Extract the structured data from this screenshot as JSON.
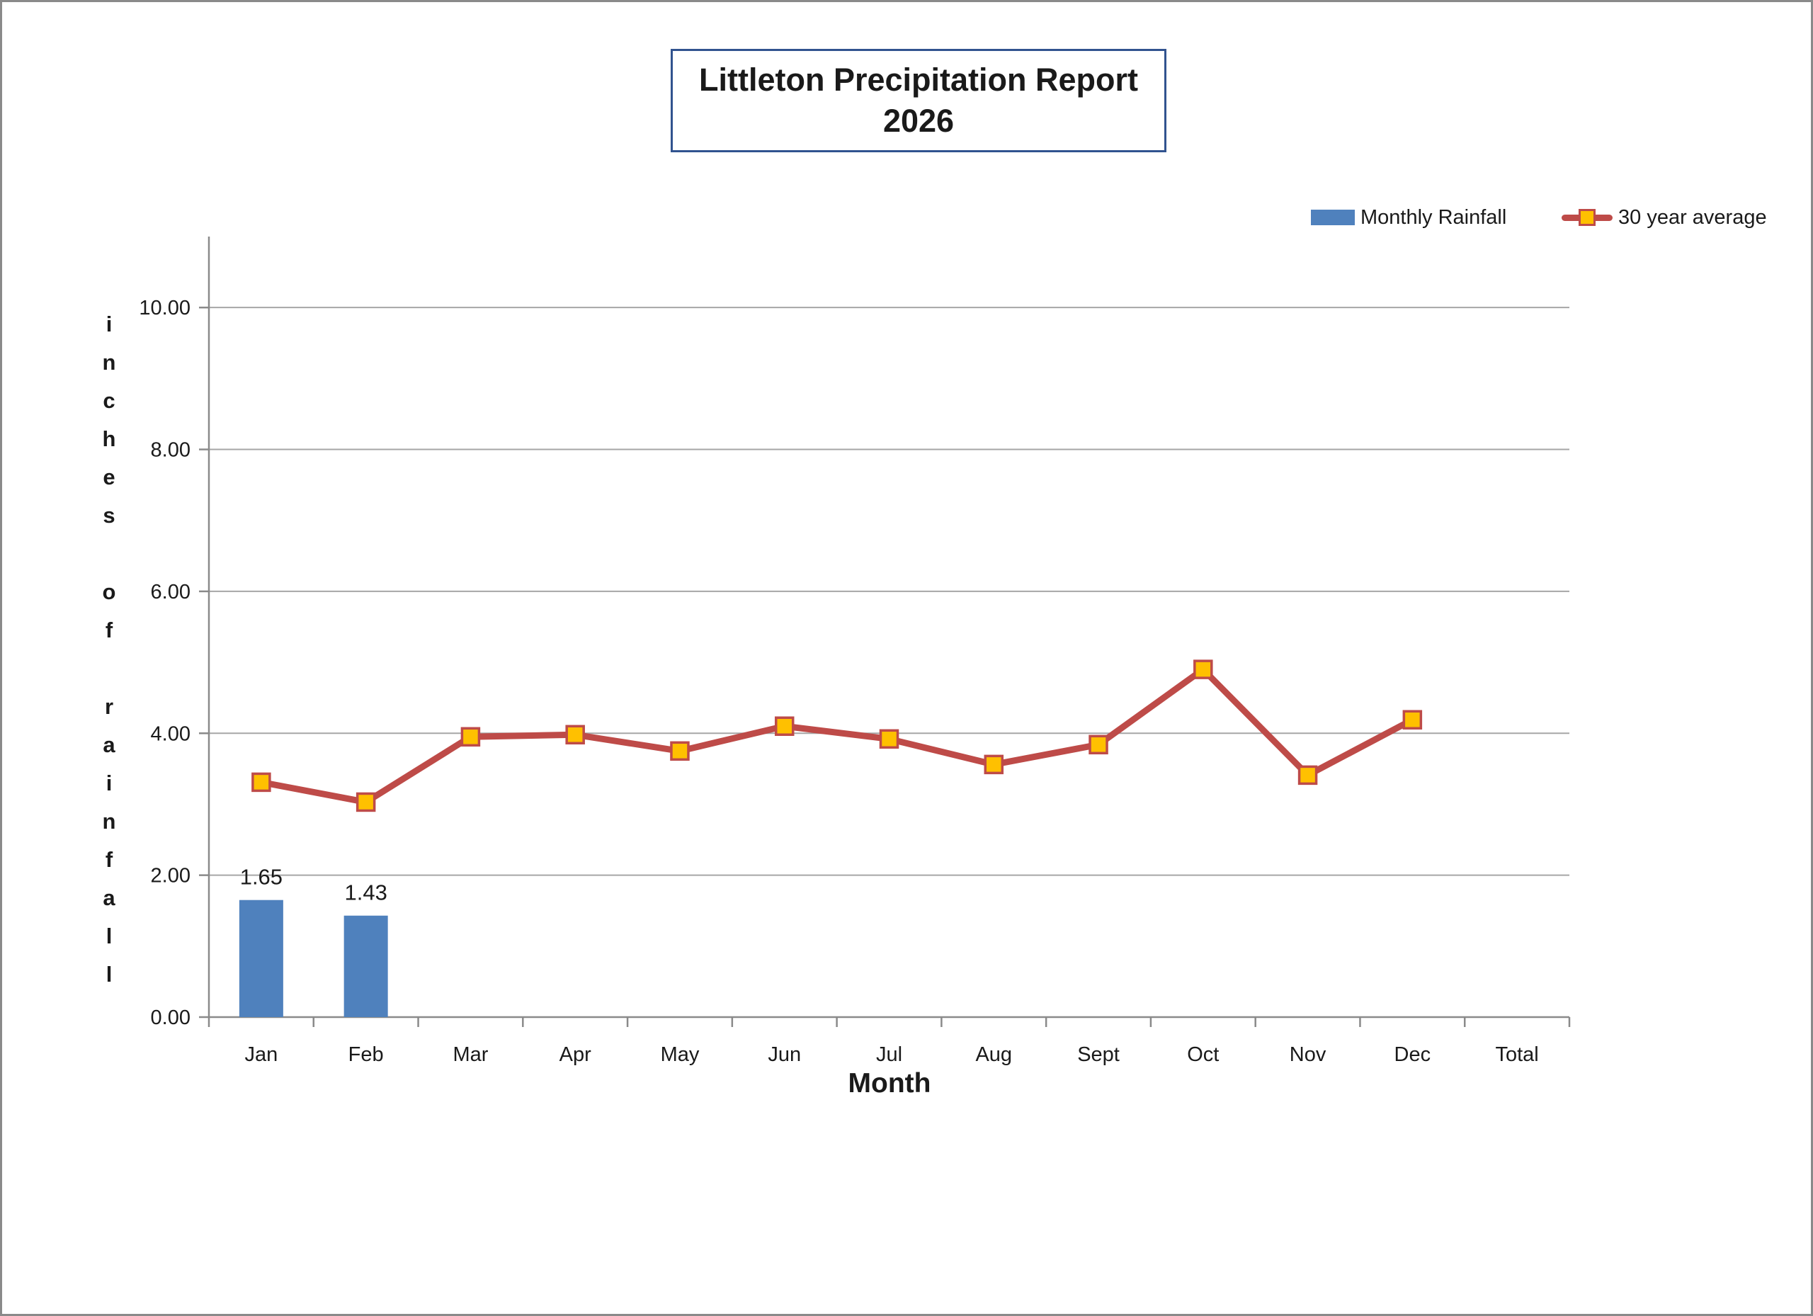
{
  "window": {
    "background": "#ffffff",
    "outer_border_color": "#8a8a8a"
  },
  "title": {
    "line1": "Littleton Precipitation Report",
    "line2": "2026",
    "box_border_color": "#31538f"
  },
  "legend": {
    "position": "top-right",
    "items": [
      {
        "label": "Monthly Rainfall",
        "swatch": "bar-swatch",
        "color": "#4f81bd"
      },
      {
        "label": "30 year average",
        "swatch": "line-marker-swatch",
        "line_color": "#be4b48",
        "marker_fill": "#ffc000",
        "marker_border": "#be4b48"
      }
    ]
  },
  "chart_data": {
    "type": "bar",
    "combo": "bar+line",
    "title": "Littleton Precipitation Report 2026",
    "xlabel": "Month",
    "ylabel": "inches of rainfall",
    "categories": [
      "Jan",
      "Feb",
      "Mar",
      "Apr",
      "May",
      "Jun",
      "Jul",
      "Aug",
      "Sept",
      "Oct",
      "Nov",
      "Dec",
      "Total"
    ],
    "series": [
      {
        "name": "Monthly Rainfall",
        "type": "bar",
        "color": "#4f81bd",
        "values": [
          1.65,
          1.43,
          null,
          null,
          null,
          null,
          null,
          null,
          null,
          null,
          null,
          null,
          null
        ],
        "data_labels": [
          "1.65",
          "1.43",
          "",
          "",
          "",
          "",
          "",
          "",
          "",
          "",
          "",
          "",
          ""
        ]
      },
      {
        "name": "30 year average",
        "type": "line",
        "line_color": "#be4b48",
        "marker_fill": "#ffc000",
        "marker_border": "#be4b48",
        "values": [
          3.31,
          3.03,
          3.95,
          3.98,
          3.75,
          4.1,
          3.92,
          3.56,
          3.84,
          4.9,
          3.41,
          4.19,
          null
        ]
      }
    ],
    "ylim": [
      0,
      11
    ],
    "yticks": [
      {
        "value": 0,
        "label": "0.00"
      },
      {
        "value": 2,
        "label": "2.00"
      },
      {
        "value": 4,
        "label": "4.00"
      },
      {
        "value": 6,
        "label": "6.00"
      },
      {
        "value": 8,
        "label": "8.00"
      },
      {
        "value": 10,
        "label": "10.00"
      }
    ],
    "grid": true,
    "gridline_color": "#a6a6a6",
    "axis_color": "#8a8a8a",
    "legend_position": "top-right"
  }
}
